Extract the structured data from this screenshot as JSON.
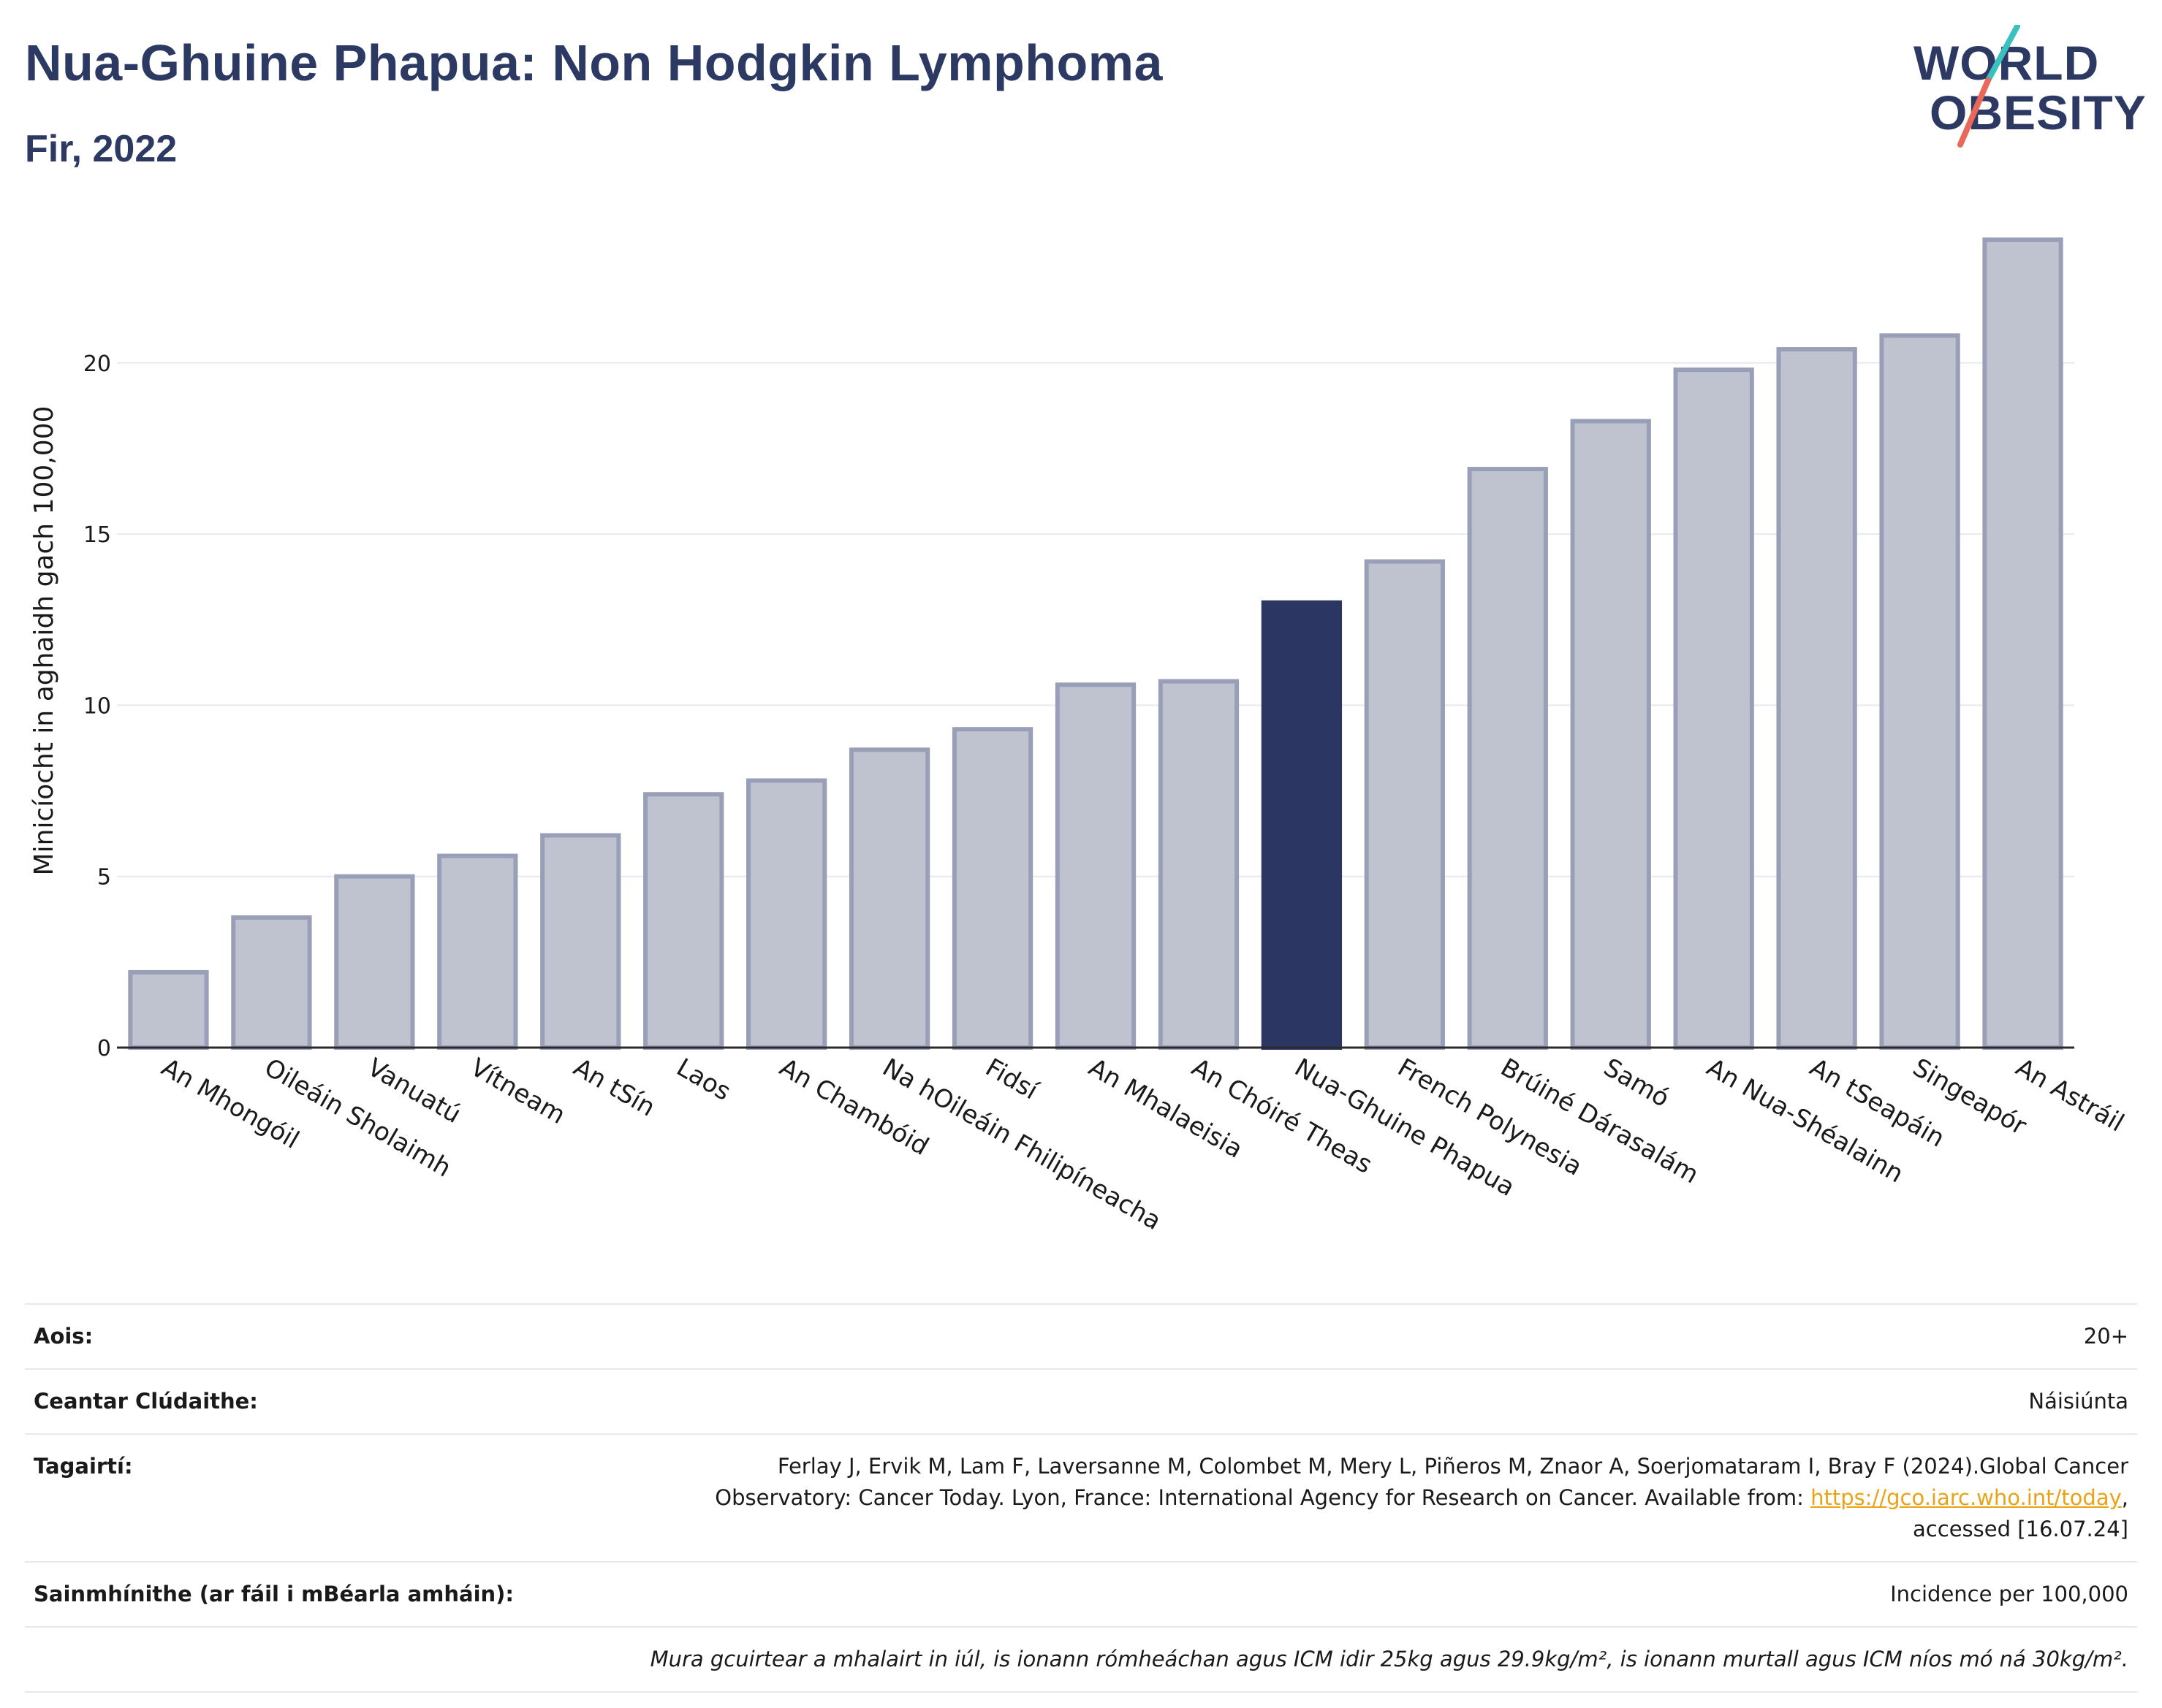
{
  "title": "Nua-Ghuine Phapua: Non Hodgkin Lymphoma",
  "subtitle": "Fir, 2022",
  "logo": {
    "line1": "WORLD",
    "line2": "OBESITY",
    "accent_colors": [
      "#3bbfbf",
      "#e8695a"
    ]
  },
  "colors": {
    "highlight": "#2c3663",
    "bar": "#bfc3d0",
    "bar_border": "#9a9fb8",
    "grid": "#e6e9f1",
    "title": "#2c3a63"
  },
  "chart_data": {
    "type": "bar",
    "title": "Nua-Ghuine Phapua: Non Hodgkin Lymphoma",
    "subtitle": "Fir, 2022",
    "ylabel": "Minicíocht in aghaidh gach 100,000",
    "xlabel": "",
    "ylim": [
      0,
      24.2
    ],
    "yticks": [
      0,
      5,
      10,
      15,
      20
    ],
    "grid": true,
    "highlight": "Nua-Ghuine Phapua",
    "categories": [
      "An Mhongóil",
      "Oileáin Sholaimh",
      "Vanuatú",
      "Vítneam",
      "An tSín",
      "Laos",
      "An Chambóid",
      "Na hOileáin Fhilipíneacha",
      "Fidsí",
      "An Mhalaeisia",
      "An Chóiré Theas",
      "Nua-Ghuine Phapua",
      "French Polynesia",
      "Brúiné Dárasalám",
      "Samó",
      "An Nua-Shéalainn",
      "An tSeapáin",
      "Singeapór",
      "An Astráil"
    ],
    "values": [
      2.2,
      3.8,
      5.0,
      5.6,
      6.2,
      7.4,
      7.8,
      8.7,
      9.3,
      10.6,
      10.7,
      13.0,
      14.2,
      16.9,
      18.3,
      19.8,
      20.4,
      20.8,
      23.6
    ]
  },
  "info": {
    "age_label": "Aois:",
    "age_value": "20+",
    "area_label": "Ceantar Clúdaithe:",
    "area_value": "Náisiúnta",
    "refs_label": "Tagairtí:",
    "refs_line1": "Ferlay J, Ervik M, Lam F, Laversanne M, Colombet M, Mery L, Piñeros M, Znaor A, Soerjomataram I, Bray F (2024).Global Cancer",
    "refs_line2_pre": "Observatory: Cancer Today. Lyon, France: International Agency for Research on Cancer. Available from: ",
    "refs_link": "https://gco.iarc.who.int/today",
    "refs_line2_post": ",",
    "refs_line3": "accessed [16.07.24]",
    "defs_label": "Sainmhínithe (ar fáil i mBéarla amháin):",
    "defs_value": "Incidence per 100,000",
    "note": "Mura gcuirtear a mhalairt in iúl, is ionann rómheáchan agus ICM idir 25kg agus 29.9kg/m², is ionann murtall agus ICM níos mó ná 30kg/m²."
  }
}
